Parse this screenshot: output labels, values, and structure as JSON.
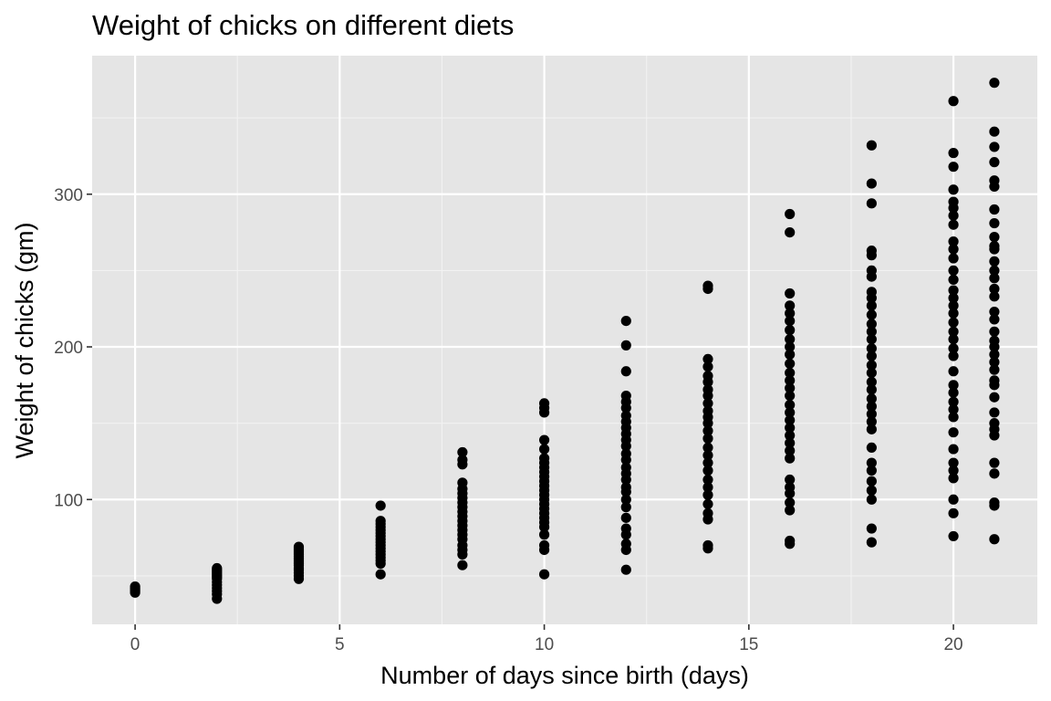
{
  "colors": {
    "panel_background": "#e5e5e5",
    "grid_major": "#ffffff",
    "grid_minor": "#f2f2f2",
    "point": "#000000",
    "tick": "#333333",
    "tick_text": "#4d4d4d"
  },
  "chart_data": {
    "type": "scatter",
    "title": "Weight of chicks on different diets",
    "xlabel": "Number of days since birth (days)",
    "ylabel": "Weight of chicks (gm)",
    "xlim": [
      -1.05,
      22.05
    ],
    "ylim": [
      18.25,
      390.75
    ],
    "x_ticks": [
      0,
      5,
      10,
      15,
      20
    ],
    "y_ticks": [
      100,
      200,
      300
    ],
    "grid": true,
    "legend": "none",
    "series": [
      {
        "points": [
          [
            0,
            39
          ],
          [
            0,
            40
          ],
          [
            0,
            41
          ],
          [
            0,
            42
          ],
          [
            0,
            43
          ],
          [
            2,
            35
          ],
          [
            2,
            38
          ],
          [
            2,
            40
          ],
          [
            2,
            42
          ],
          [
            2,
            44
          ],
          [
            2,
            46
          ],
          [
            2,
            48
          ],
          [
            2,
            49
          ],
          [
            2,
            50
          ],
          [
            2,
            51
          ],
          [
            2,
            52
          ],
          [
            2,
            53
          ],
          [
            2,
            54
          ],
          [
            2,
            55
          ],
          [
            4,
            48
          ],
          [
            4,
            50
          ],
          [
            4,
            52
          ],
          [
            4,
            54
          ],
          [
            4,
            55
          ],
          [
            4,
            57
          ],
          [
            4,
            58
          ],
          [
            4,
            59
          ],
          [
            4,
            60
          ],
          [
            4,
            61
          ],
          [
            4,
            62
          ],
          [
            4,
            63
          ],
          [
            4,
            64
          ],
          [
            4,
            65
          ],
          [
            4,
            66
          ],
          [
            4,
            67
          ],
          [
            4,
            68
          ],
          [
            4,
            69
          ],
          [
            6,
            51
          ],
          [
            6,
            58
          ],
          [
            6,
            60
          ],
          [
            6,
            62
          ],
          [
            6,
            64
          ],
          [
            6,
            66
          ],
          [
            6,
            68
          ],
          [
            6,
            70
          ],
          [
            6,
            72
          ],
          [
            6,
            74
          ],
          [
            6,
            76
          ],
          [
            6,
            78
          ],
          [
            6,
            80
          ],
          [
            6,
            82
          ],
          [
            6,
            84
          ],
          [
            6,
            86
          ],
          [
            6,
            96
          ],
          [
            8,
            57
          ],
          [
            8,
            64
          ],
          [
            8,
            67
          ],
          [
            8,
            70
          ],
          [
            8,
            74
          ],
          [
            8,
            77
          ],
          [
            8,
            80
          ],
          [
            8,
            83
          ],
          [
            8,
            86
          ],
          [
            8,
            89
          ],
          [
            8,
            92
          ],
          [
            8,
            95
          ],
          [
            8,
            98
          ],
          [
            8,
            101
          ],
          [
            8,
            104
          ],
          [
            8,
            107
          ],
          [
            8,
            111
          ],
          [
            8,
            123
          ],
          [
            8,
            126
          ],
          [
            8,
            131
          ],
          [
            10,
            51
          ],
          [
            10,
            67
          ],
          [
            10,
            70
          ],
          [
            10,
            77
          ],
          [
            10,
            82
          ],
          [
            10,
            85
          ],
          [
            10,
            88
          ],
          [
            10,
            91
          ],
          [
            10,
            94
          ],
          [
            10,
            97
          ],
          [
            10,
            100
          ],
          [
            10,
            103
          ],
          [
            10,
            106
          ],
          [
            10,
            109
          ],
          [
            10,
            112
          ],
          [
            10,
            115
          ],
          [
            10,
            118
          ],
          [
            10,
            121
          ],
          [
            10,
            124
          ],
          [
            10,
            127
          ],
          [
            10,
            133
          ],
          [
            10,
            139
          ],
          [
            10,
            157
          ],
          [
            10,
            160
          ],
          [
            10,
            163
          ],
          [
            12,
            54
          ],
          [
            12,
            67
          ],
          [
            12,
            71
          ],
          [
            12,
            77
          ],
          [
            12,
            81
          ],
          [
            12,
            88
          ],
          [
            12,
            95
          ],
          [
            12,
            100
          ],
          [
            12,
            105
          ],
          [
            12,
            108
          ],
          [
            12,
            113
          ],
          [
            12,
            117
          ],
          [
            12,
            121
          ],
          [
            12,
            126
          ],
          [
            12,
            130
          ],
          [
            12,
            135
          ],
          [
            12,
            139
          ],
          [
            12,
            143
          ],
          [
            12,
            147
          ],
          [
            12,
            151
          ],
          [
            12,
            155
          ],
          [
            12,
            160
          ],
          [
            12,
            164
          ],
          [
            12,
            168
          ],
          [
            12,
            184
          ],
          [
            12,
            201
          ],
          [
            12,
            217
          ],
          [
            14,
            68
          ],
          [
            14,
            70
          ],
          [
            14,
            87
          ],
          [
            14,
            91
          ],
          [
            14,
            97
          ],
          [
            14,
            103
          ],
          [
            14,
            108
          ],
          [
            14,
            113
          ],
          [
            14,
            119
          ],
          [
            14,
            124
          ],
          [
            14,
            129
          ],
          [
            14,
            134
          ],
          [
            14,
            140
          ],
          [
            14,
            145
          ],
          [
            14,
            150
          ],
          [
            14,
            154
          ],
          [
            14,
            158
          ],
          [
            14,
            163
          ],
          [
            14,
            168
          ],
          [
            14,
            172
          ],
          [
            14,
            177
          ],
          [
            14,
            181
          ],
          [
            14,
            187
          ],
          [
            14,
            192
          ],
          [
            14,
            238
          ],
          [
            14,
            240
          ],
          [
            16,
            71
          ],
          [
            16,
            73
          ],
          [
            16,
            93
          ],
          [
            16,
            98
          ],
          [
            16,
            104
          ],
          [
            16,
            108
          ],
          [
            16,
            113
          ],
          [
            16,
            127
          ],
          [
            16,
            132
          ],
          [
            16,
            137
          ],
          [
            16,
            142
          ],
          [
            16,
            147
          ],
          [
            16,
            152
          ],
          [
            16,
            157
          ],
          [
            16,
            162
          ],
          [
            16,
            168
          ],
          [
            16,
            173
          ],
          [
            16,
            178
          ],
          [
            16,
            183
          ],
          [
            16,
            189
          ],
          [
            16,
            195
          ],
          [
            16,
            200
          ],
          [
            16,
            205
          ],
          [
            16,
            211
          ],
          [
            16,
            217
          ],
          [
            16,
            222
          ],
          [
            16,
            227
          ],
          [
            16,
            235
          ],
          [
            16,
            275
          ],
          [
            16,
            287
          ],
          [
            18,
            72
          ],
          [
            18,
            81
          ],
          [
            18,
            100
          ],
          [
            18,
            106
          ],
          [
            18,
            112
          ],
          [
            18,
            119
          ],
          [
            18,
            124
          ],
          [
            18,
            134
          ],
          [
            18,
            146
          ],
          [
            18,
            151
          ],
          [
            18,
            156
          ],
          [
            18,
            161
          ],
          [
            18,
            166
          ],
          [
            18,
            172
          ],
          [
            18,
            177
          ],
          [
            18,
            183
          ],
          [
            18,
            188
          ],
          [
            18,
            194
          ],
          [
            18,
            199
          ],
          [
            18,
            205
          ],
          [
            18,
            210
          ],
          [
            18,
            215
          ],
          [
            18,
            221
          ],
          [
            18,
            227
          ],
          [
            18,
            232
          ],
          [
            18,
            236
          ],
          [
            18,
            246
          ],
          [
            18,
            250
          ],
          [
            18,
            260
          ],
          [
            18,
            263
          ],
          [
            18,
            294
          ],
          [
            18,
            307
          ],
          [
            18,
            332
          ],
          [
            20,
            76
          ],
          [
            20,
            91
          ],
          [
            20,
            100
          ],
          [
            20,
            114
          ],
          [
            20,
            119
          ],
          [
            20,
            124
          ],
          [
            20,
            133
          ],
          [
            20,
            144
          ],
          [
            20,
            154
          ],
          [
            20,
            159
          ],
          [
            20,
            164
          ],
          [
            20,
            170
          ],
          [
            20,
            175
          ],
          [
            20,
            184
          ],
          [
            20,
            194
          ],
          [
            20,
            199
          ],
          [
            20,
            205
          ],
          [
            20,
            210
          ],
          [
            20,
            216
          ],
          [
            20,
            222
          ],
          [
            20,
            227
          ],
          [
            20,
            232
          ],
          [
            20,
            237
          ],
          [
            20,
            244
          ],
          [
            20,
            250
          ],
          [
            20,
            258
          ],
          [
            20,
            264
          ],
          [
            20,
            269
          ],
          [
            20,
            280
          ],
          [
            20,
            286
          ],
          [
            20,
            291
          ],
          [
            20,
            295
          ],
          [
            20,
            303
          ],
          [
            20,
            318
          ],
          [
            20,
            327
          ],
          [
            20,
            361
          ],
          [
            21,
            74
          ],
          [
            21,
            96
          ],
          [
            21,
            98
          ],
          [
            21,
            117
          ],
          [
            21,
            124
          ],
          [
            21,
            142
          ],
          [
            21,
            146
          ],
          [
            21,
            150
          ],
          [
            21,
            157
          ],
          [
            21,
            167
          ],
          [
            21,
            175
          ],
          [
            21,
            178
          ],
          [
            21,
            185
          ],
          [
            21,
            190
          ],
          [
            21,
            195
          ],
          [
            21,
            200
          ],
          [
            21,
            204
          ],
          [
            21,
            210
          ],
          [
            21,
            218
          ],
          [
            21,
            223
          ],
          [
            21,
            233
          ],
          [
            21,
            238
          ],
          [
            21,
            245
          ],
          [
            21,
            250
          ],
          [
            21,
            256
          ],
          [
            21,
            264
          ],
          [
            21,
            266
          ],
          [
            21,
            272
          ],
          [
            21,
            281
          ],
          [
            21,
            290
          ],
          [
            21,
            305
          ],
          [
            21,
            309
          ],
          [
            21,
            321
          ],
          [
            21,
            331
          ],
          [
            21,
            341
          ],
          [
            21,
            373
          ]
        ]
      }
    ]
  }
}
